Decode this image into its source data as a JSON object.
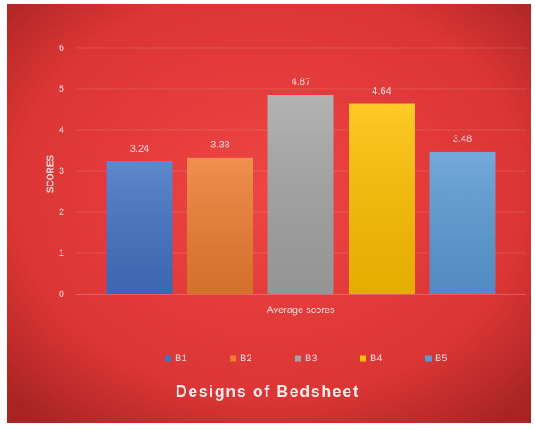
{
  "chart_data": {
    "type": "bar",
    "title": "Designs of Bedsheet",
    "y_label": "SCORES",
    "categories": [
      "Average scores"
    ],
    "series": [
      {
        "name": "B1",
        "color": "#4472c4",
        "values": [
          3.24
        ]
      },
      {
        "name": "B2",
        "color": "#ed7d31",
        "values": [
          3.33
        ]
      },
      {
        "name": "B3",
        "color": "#a5a5a5",
        "values": [
          4.87
        ]
      },
      {
        "name": "B4",
        "color": "#ffc000",
        "values": [
          4.64
        ]
      },
      {
        "name": "B5",
        "color": "#5b9bd5",
        "values": [
          3.48
        ]
      }
    ],
    "ylim": [
      0,
      6
    ],
    "yticks": [
      0,
      1,
      2,
      3,
      4,
      5,
      6
    ],
    "grid": true,
    "legend": "bottom"
  }
}
